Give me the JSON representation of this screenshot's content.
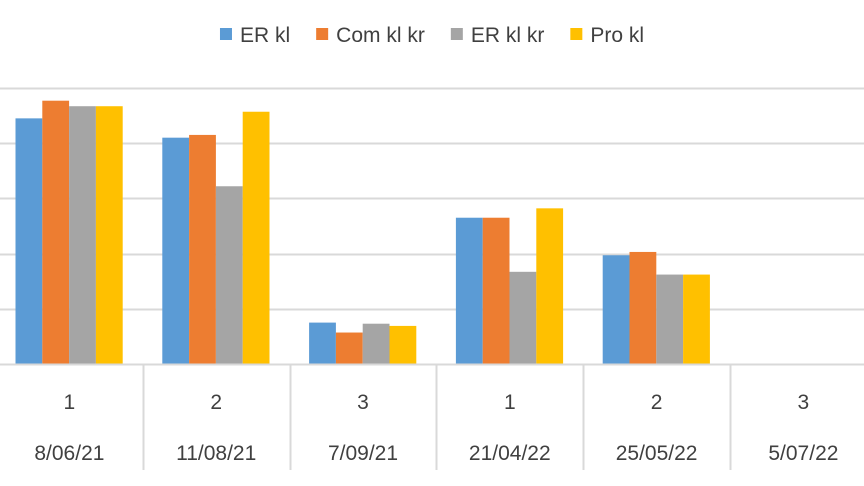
{
  "chart_data": {
    "type": "bar",
    "title": "",
    "xlabel": "",
    "ylabel": "",
    "categories": [
      {
        "top": "1",
        "bottom": "8/06/21"
      },
      {
        "top": "2",
        "bottom": "11/08/21"
      },
      {
        "top": "3",
        "bottom": "7/09/21"
      },
      {
        "top": "1",
        "bottom": "21/04/22"
      },
      {
        "top": "2",
        "bottom": "25/05/22"
      },
      {
        "top": "3",
        "bottom": "5/07/22"
      }
    ],
    "series": [
      {
        "name": "ER kl",
        "color": "#5B9BD5",
        "values": [
          4.45,
          4.1,
          0.75,
          2.65,
          1.97,
          null
        ]
      },
      {
        "name": "Com kl kr",
        "color": "#ED7D31",
        "values": [
          4.77,
          4.15,
          0.57,
          2.65,
          2.03,
          null
        ]
      },
      {
        "name": "ER kl kr",
        "color": "#A5A5A5",
        "values": [
          4.67,
          3.22,
          0.73,
          1.67,
          1.62,
          null
        ]
      },
      {
        "name": "Pro kl",
        "color": "#FFC000",
        "values": [
          4.67,
          4.57,
          0.69,
          2.82,
          1.62,
          null
        ]
      }
    ],
    "ylim": [
      0,
      5
    ],
    "grid": true,
    "legend": "top",
    "axis_color": "#D9D9D9"
  }
}
